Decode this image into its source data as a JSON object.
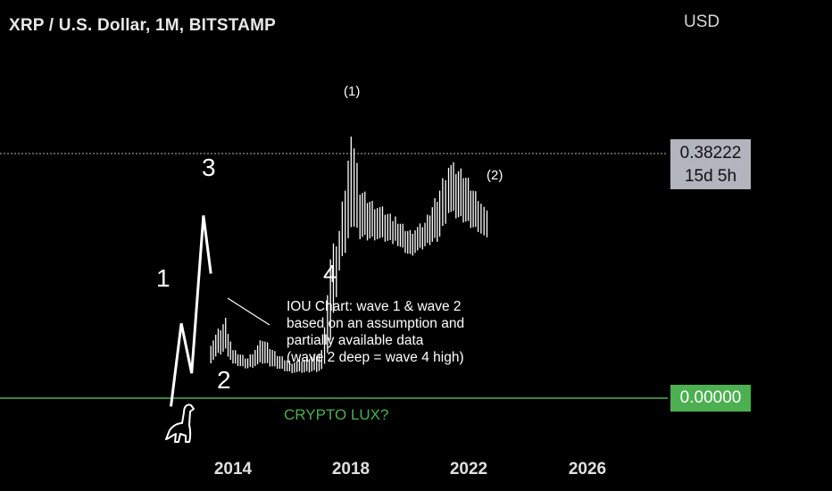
{
  "header": {
    "title": "XRP / U.S. Dollar, 1M, BITSTAMP",
    "currency": "USD"
  },
  "price_label": {
    "price": "0.38222",
    "countdown": "15d 5h",
    "color": "#b2b5be"
  },
  "zero_label": {
    "value": "0.00000",
    "color": "#4caf50"
  },
  "annotations": {
    "wave_1": "1",
    "wave_2": "2",
    "wave_3": "3",
    "wave_4": "4",
    "wave_1_paren": "(1)",
    "wave_2_paren": "(2)",
    "note": [
      "IOU Chart: wave 1 & wave 2",
      "based on an assumption and",
      "partially available data",
      "(wave 2 deep = wave 4 high)"
    ],
    "crypto_lux": "CRYPTO LUX?",
    "dino_icon": "dinosaur-icon"
  },
  "chart_data": {
    "type": "bar",
    "title": "XRP / U.S. Dollar, 1M, BITSTAMP",
    "xlabel": "",
    "ylabel": "",
    "x_ticks": [
      "2014",
      "2018",
      "2022",
      "2026"
    ],
    "last_price": 0.38222,
    "horizontal_line": 0.0,
    "colors": {
      "bars": "#ffffff",
      "zero_line": "#4caf50",
      "price_line": "#b2b5be"
    },
    "price_bars_shape": [
      [
        2013.25,
        0.42,
        0.7
      ],
      [
        2013.5,
        0.5,
        0.85
      ],
      [
        2013.75,
        0.55,
        1.0
      ],
      [
        2014.0,
        0.4,
        0.6
      ],
      [
        2014.5,
        0.35,
        0.5
      ],
      [
        2015.0,
        0.4,
        0.75
      ],
      [
        2015.5,
        0.35,
        0.55
      ],
      [
        2016.0,
        0.3,
        0.45
      ],
      [
        2016.5,
        0.3,
        0.5
      ],
      [
        2017.0,
        0.32,
        0.6
      ],
      [
        2017.3,
        0.6,
        1.8
      ],
      [
        2017.6,
        1.5,
        2.1
      ],
      [
        2018.0,
        2.0,
        3.4
      ],
      [
        2018.3,
        1.9,
        2.6
      ],
      [
        2018.8,
        1.9,
        2.4
      ],
      [
        2019.5,
        1.85,
        2.2
      ],
      [
        2020.0,
        1.7,
        2.05
      ],
      [
        2020.5,
        1.8,
        2.15
      ],
      [
        2021.0,
        1.9,
        2.6
      ],
      [
        2021.3,
        2.2,
        2.9
      ],
      [
        2021.8,
        2.1,
        2.8
      ],
      [
        2022.3,
        2.0,
        2.5
      ],
      [
        2022.7,
        1.85,
        2.2
      ]
    ],
    "elliott_path_shape": [
      [
        2011.9,
        -0.1
      ],
      [
        2012.25,
        0.9
      ],
      [
        2012.6,
        0.3
      ],
      [
        2013.0,
        2.2
      ],
      [
        2013.25,
        1.5
      ]
    ]
  }
}
